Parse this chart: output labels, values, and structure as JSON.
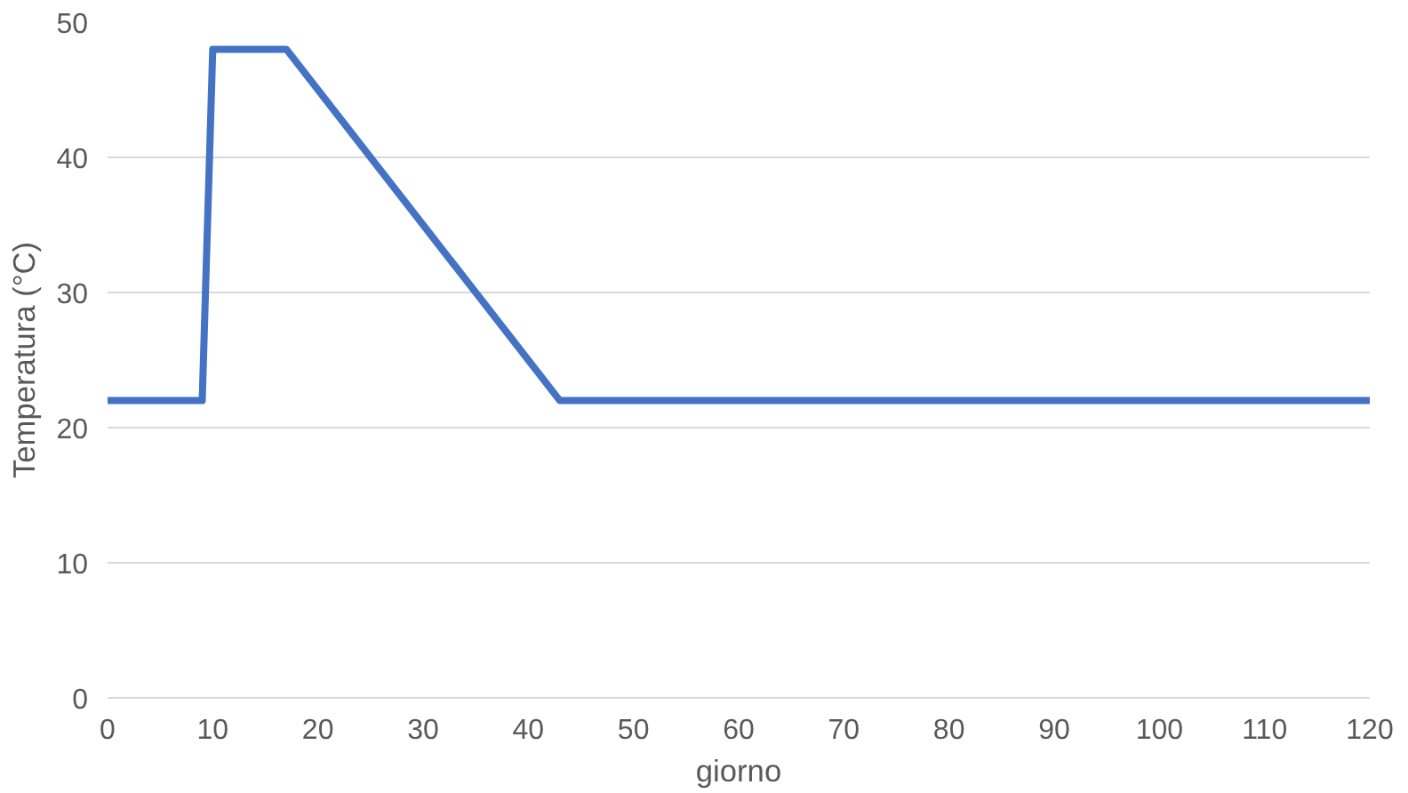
{
  "chart_data": {
    "type": "line",
    "xlabel": "giorno",
    "ylabel": "Temperatura (°C)",
    "x": [
      0,
      9,
      10,
      17,
      43,
      120
    ],
    "series": [
      {
        "color": "#4472c4",
        "values": [
          22,
          22,
          48,
          48,
          22,
          22
        ]
      }
    ],
    "xlim": [
      0,
      120
    ],
    "xticks": [
      0,
      10,
      20,
      30,
      40,
      50,
      60,
      70,
      80,
      90,
      100,
      110,
      120
    ],
    "ylim": [
      0,
      50
    ],
    "yticks": [
      0,
      10,
      20,
      30,
      40,
      50
    ],
    "grid": "y",
    "marker": "none",
    "line_style": "solid"
  }
}
